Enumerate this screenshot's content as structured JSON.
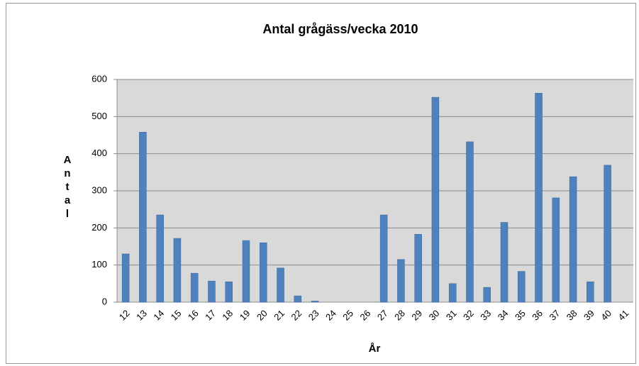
{
  "chart_data": {
    "type": "bar",
    "title": "Antal grågäss/vecka 2010",
    "x_label": "År",
    "y_label": "Antal",
    "categories": [
      "12",
      "13",
      "14",
      "15",
      "16",
      "17",
      "18",
      "19",
      "20",
      "21",
      "22",
      "23",
      "24",
      "25",
      "26",
      "27",
      "28",
      "29",
      "30",
      "31",
      "32",
      "33",
      "34",
      "35",
      "36",
      "37",
      "38",
      "39",
      "40",
      "41"
    ],
    "values": [
      130,
      458,
      235,
      172,
      78,
      57,
      55,
      166,
      160,
      92,
      17,
      3,
      0,
      0,
      0,
      235,
      115,
      183,
      552,
      50,
      432,
      40,
      215,
      83,
      563,
      281,
      338,
      55,
      369,
      0
    ],
    "color": "#4f81bd",
    "ylim": [
      0,
      600
    ],
    "yticks": [
      0,
      100,
      200,
      300,
      400,
      500,
      600
    ],
    "grid": true
  }
}
